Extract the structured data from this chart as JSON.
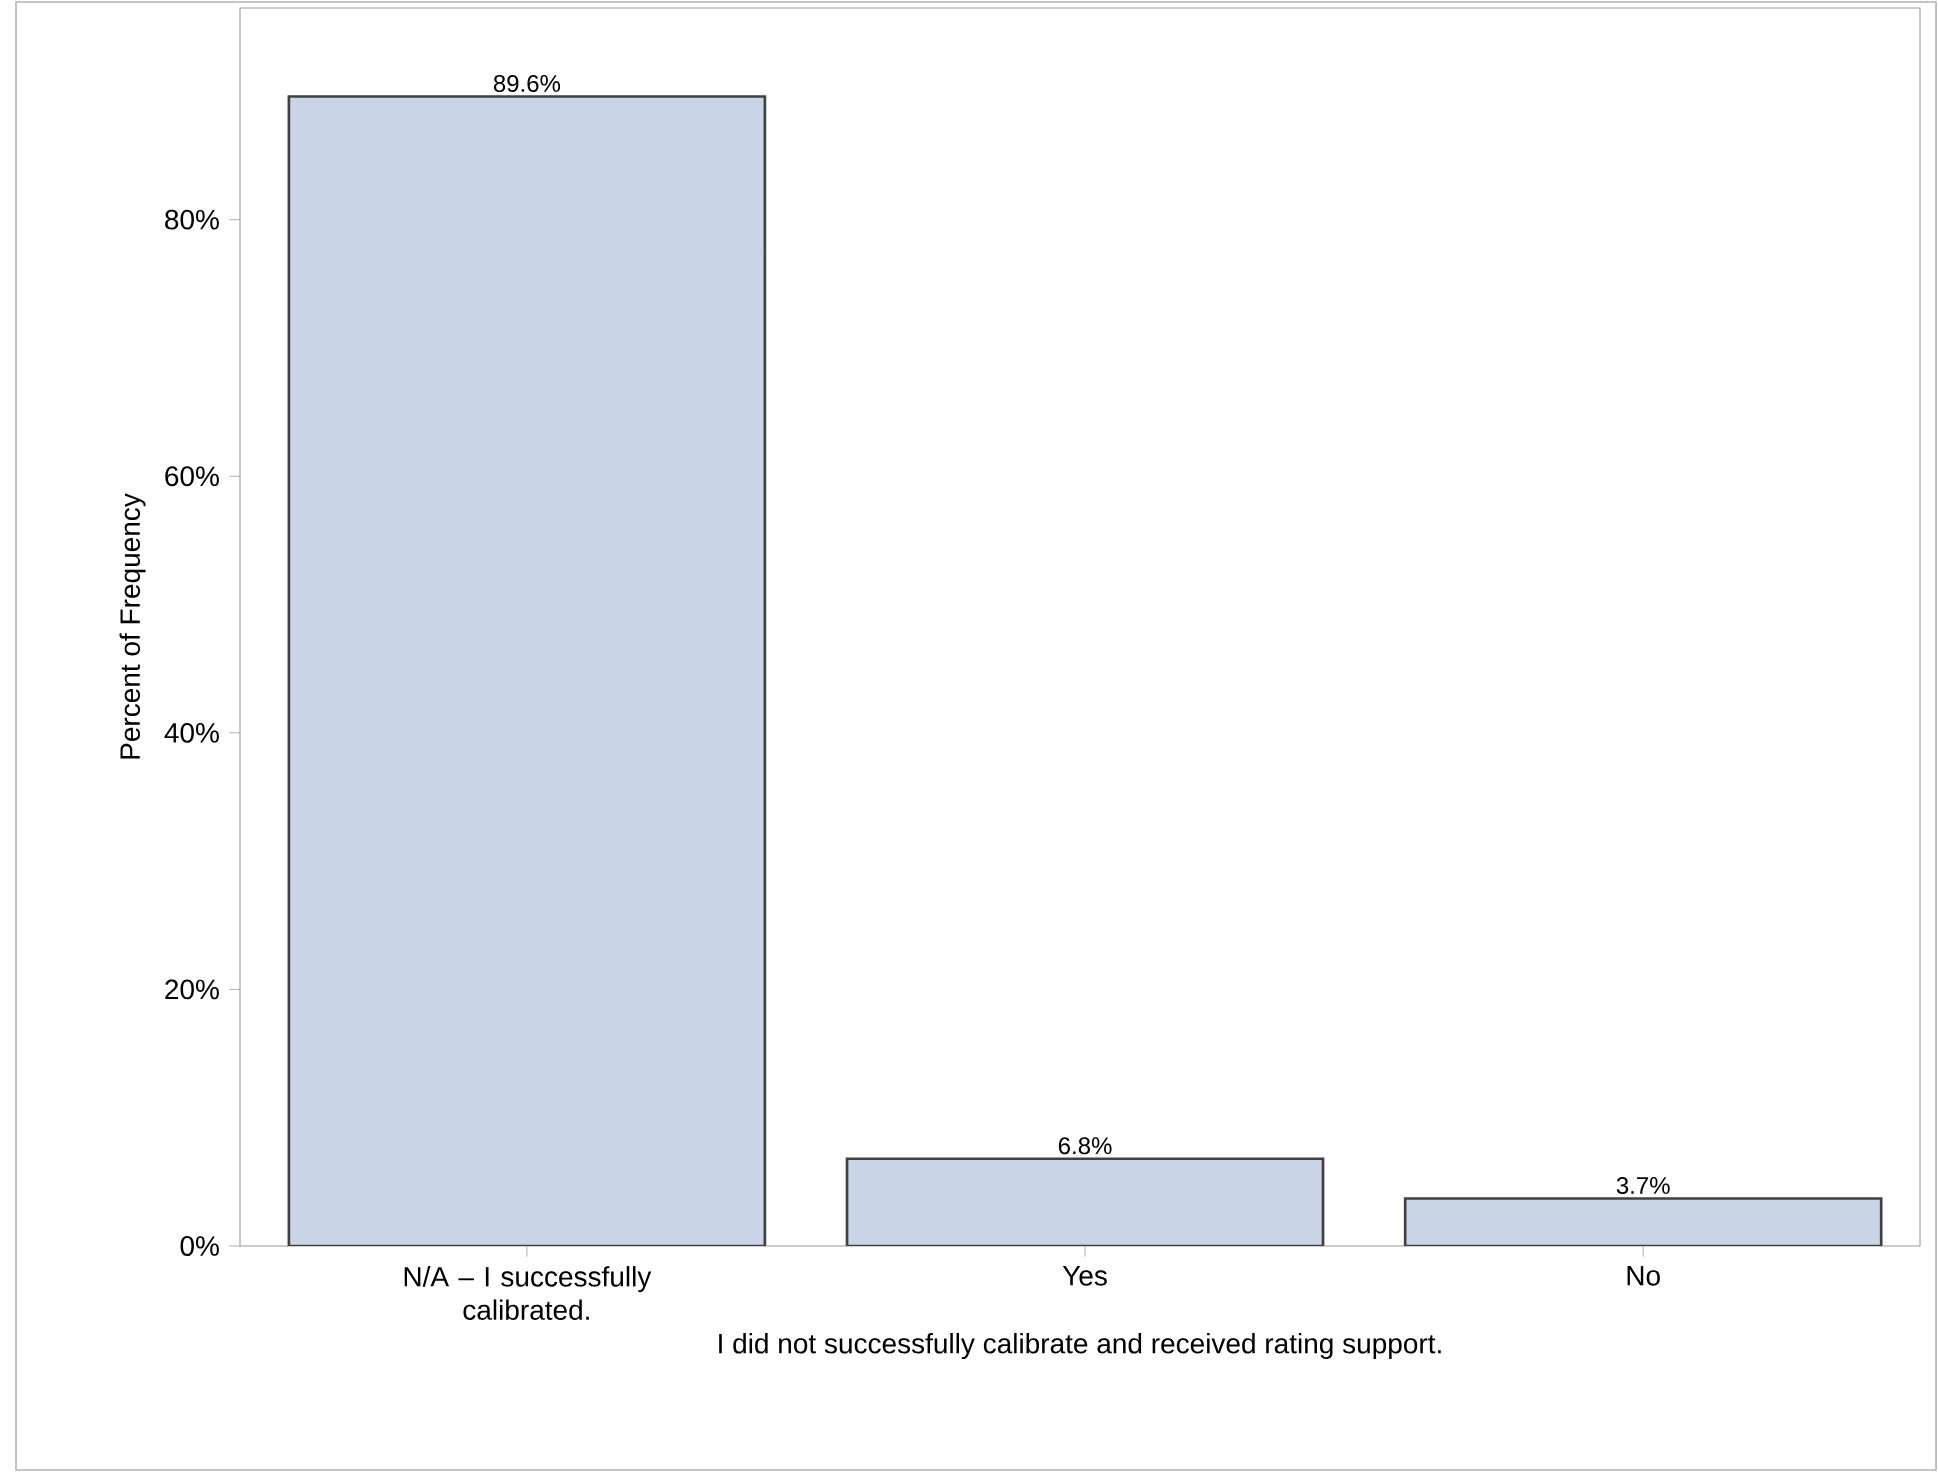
{
  "chart_data": {
    "type": "bar",
    "categories": [
      "N/A – I successfully calibrated.",
      "Yes",
      "No"
    ],
    "values": [
      89.6,
      6.8,
      3.7
    ],
    "value_labels": [
      "89.6%",
      "6.8%",
      "3.7%"
    ],
    "color": "#c9d5e6",
    "xlabel": "I did not successfully calibrate and received rating support.",
    "ylabel": "Percent of Frequency",
    "ylim": [
      0,
      96.5
    ],
    "yticks": [
      {
        "value": 0,
        "label": "0%"
      },
      {
        "value": 20,
        "label": "20%"
      },
      {
        "value": 40,
        "label": "40%"
      },
      {
        "value": 60,
        "label": "60%"
      },
      {
        "value": 80,
        "label": "80%"
      }
    ]
  }
}
